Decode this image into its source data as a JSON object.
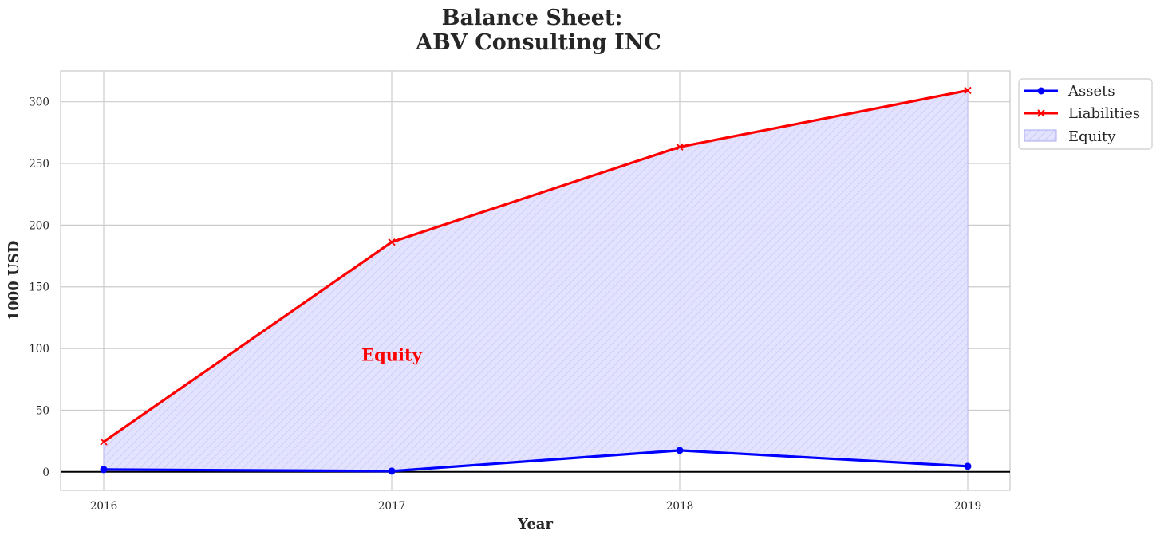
{
  "chart_data": {
    "type": "line",
    "title_line1": "Balance Sheet:",
    "title_line2": "ABV Consulting INC",
    "xlabel": "Year",
    "ylabel": "1000 USD",
    "categories": [
      "2016",
      "2017",
      "2018",
      "2019"
    ],
    "yticks": [
      0,
      50,
      100,
      150,
      200,
      250,
      300
    ],
    "ylim": [
      -15,
      325
    ],
    "grid": true,
    "legend_position": "outside-top-right",
    "series": [
      {
        "name": "Assets",
        "values": [
          1.9,
          0.6,
          17.4,
          4.5
        ],
        "color": "#0000ff",
        "marker": "circle"
      },
      {
        "name": "Liabilities",
        "values": [
          24.4,
          186.3,
          263.4,
          309.2
        ],
        "color": "#ff0000",
        "marker": "x"
      }
    ],
    "fill": {
      "name": "Equity",
      "color": "#0000ff",
      "pattern": "hatched"
    },
    "annotation": {
      "text": "Equity",
      "x": "2017",
      "y": 90,
      "color": "#ff0000"
    },
    "zero_line_color": "#000000"
  }
}
